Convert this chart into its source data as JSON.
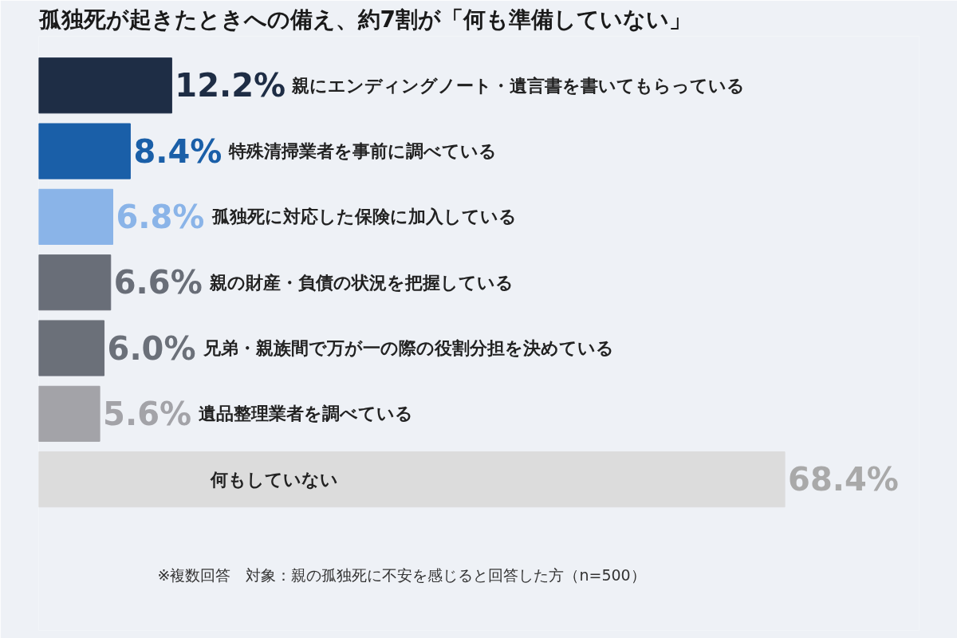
{
  "chart_data": {
    "type": "bar",
    "orientation": "horizontal",
    "title": "孤独死が起きたときへの備え、約7割が「何も準備していない」",
    "categories": [
      "親にエンディングノート・遺言書を書いてもらっている",
      "特殊清掃業者を事前に調べている",
      "孤独死に対応した保険に加入している",
      "親の財産・負債の状況を把握している",
      "兄弟・親族間で万が一の際の役割分担を決めている",
      "遺品整理業者を調べている",
      "何もしていない"
    ],
    "values": [
      12.2,
      8.4,
      6.8,
      6.6,
      6.0,
      5.6,
      68.4
    ],
    "value_labels": [
      "12.2%",
      "8.4%",
      "6.8%",
      "6.6%",
      "6.0%",
      "5.6%",
      "68.4%"
    ],
    "colors": [
      "#1e2d45",
      "#1a5fa8",
      "#8ab4e8",
      "#696e78",
      "#6b7079",
      "#a3a3a8",
      "#dcdcdc"
    ],
    "annotations": [
      "※複数回答　対象：親の孤独死に不安を感じると回答した方（n=500）"
    ],
    "grid": false
  }
}
